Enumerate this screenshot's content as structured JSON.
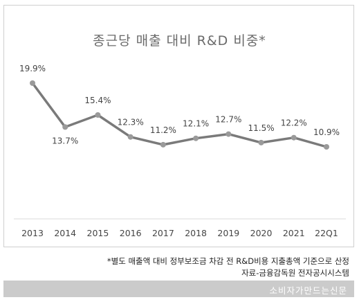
{
  "chart_data": {
    "type": "line",
    "title": "종근당 매출 대비 R&D 비중*",
    "categories": [
      "2013",
      "2014",
      "2015",
      "2016",
      "2017",
      "2018",
      "2019",
      "2020",
      "2021",
      "22Q1"
    ],
    "values": [
      19.9,
      13.7,
      15.4,
      12.3,
      11.2,
      12.1,
      12.7,
      11.5,
      12.2,
      10.9
    ],
    "data_labels": [
      "19.9%",
      "13.7%",
      "15.4%",
      "12.3%",
      "11.2%",
      "12.1%",
      "12.7%",
      "11.5%",
      "12.2%",
      "10.9%"
    ],
    "xlabel": "",
    "ylabel": "",
    "ylim": [
      8,
      22
    ],
    "grid": false,
    "line_color": "#7a7a7a",
    "marker_color": "#9a9a9a"
  },
  "notes": {
    "line1": "*별도 매출액 대비 정부보조금 차감 전 R&D비용 지출총액 기준으로 산정",
    "line2": "자료-금융감독원 전자공시시스템"
  },
  "footer": {
    "text": "소비자가만드는신문",
    "bar_color": "#cbcbcb"
  }
}
